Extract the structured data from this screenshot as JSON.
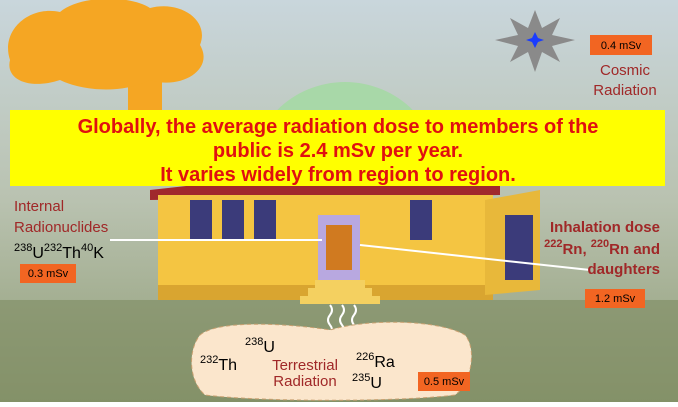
{
  "cosmic": {
    "dose": "0.4 mSv",
    "label": [
      "Cosmic",
      "Radiation"
    ]
  },
  "banner": {
    "lines": [
      "Globally, the average radiation dose to members of the",
      "public is 2.4 mSv per year.",
      "It varies widely from region to region."
    ]
  },
  "internal": {
    "label": [
      "Internal",
      "Radionuclides"
    ],
    "nuclides": [
      {
        "mass": "238",
        "symbol": "U"
      },
      {
        "mass": "232",
        "symbol": "Th"
      },
      {
        "mass": "40",
        "symbol": "K"
      }
    ],
    "dose": "0.3 mSv"
  },
  "inhalation": {
    "title": "Inhalation dose",
    "nuclides": [
      {
        "mass": "222",
        "symbol": "Rn,"
      },
      {
        "mass": "220",
        "symbol": "Rn and"
      }
    ],
    "last": "daughters",
    "dose": "1.2 mSv"
  },
  "terrestrial": {
    "nuclides": [
      {
        "mass": "232",
        "symbol": "Th"
      },
      {
        "mass": "238",
        "symbol": "U"
      },
      {
        "mass": "226",
        "symbol": "Ra"
      },
      {
        "mass": "235",
        "symbol": "U"
      }
    ],
    "label": [
      "Terrestrial",
      "Radiation"
    ],
    "dose": "0.5 mSv"
  }
}
